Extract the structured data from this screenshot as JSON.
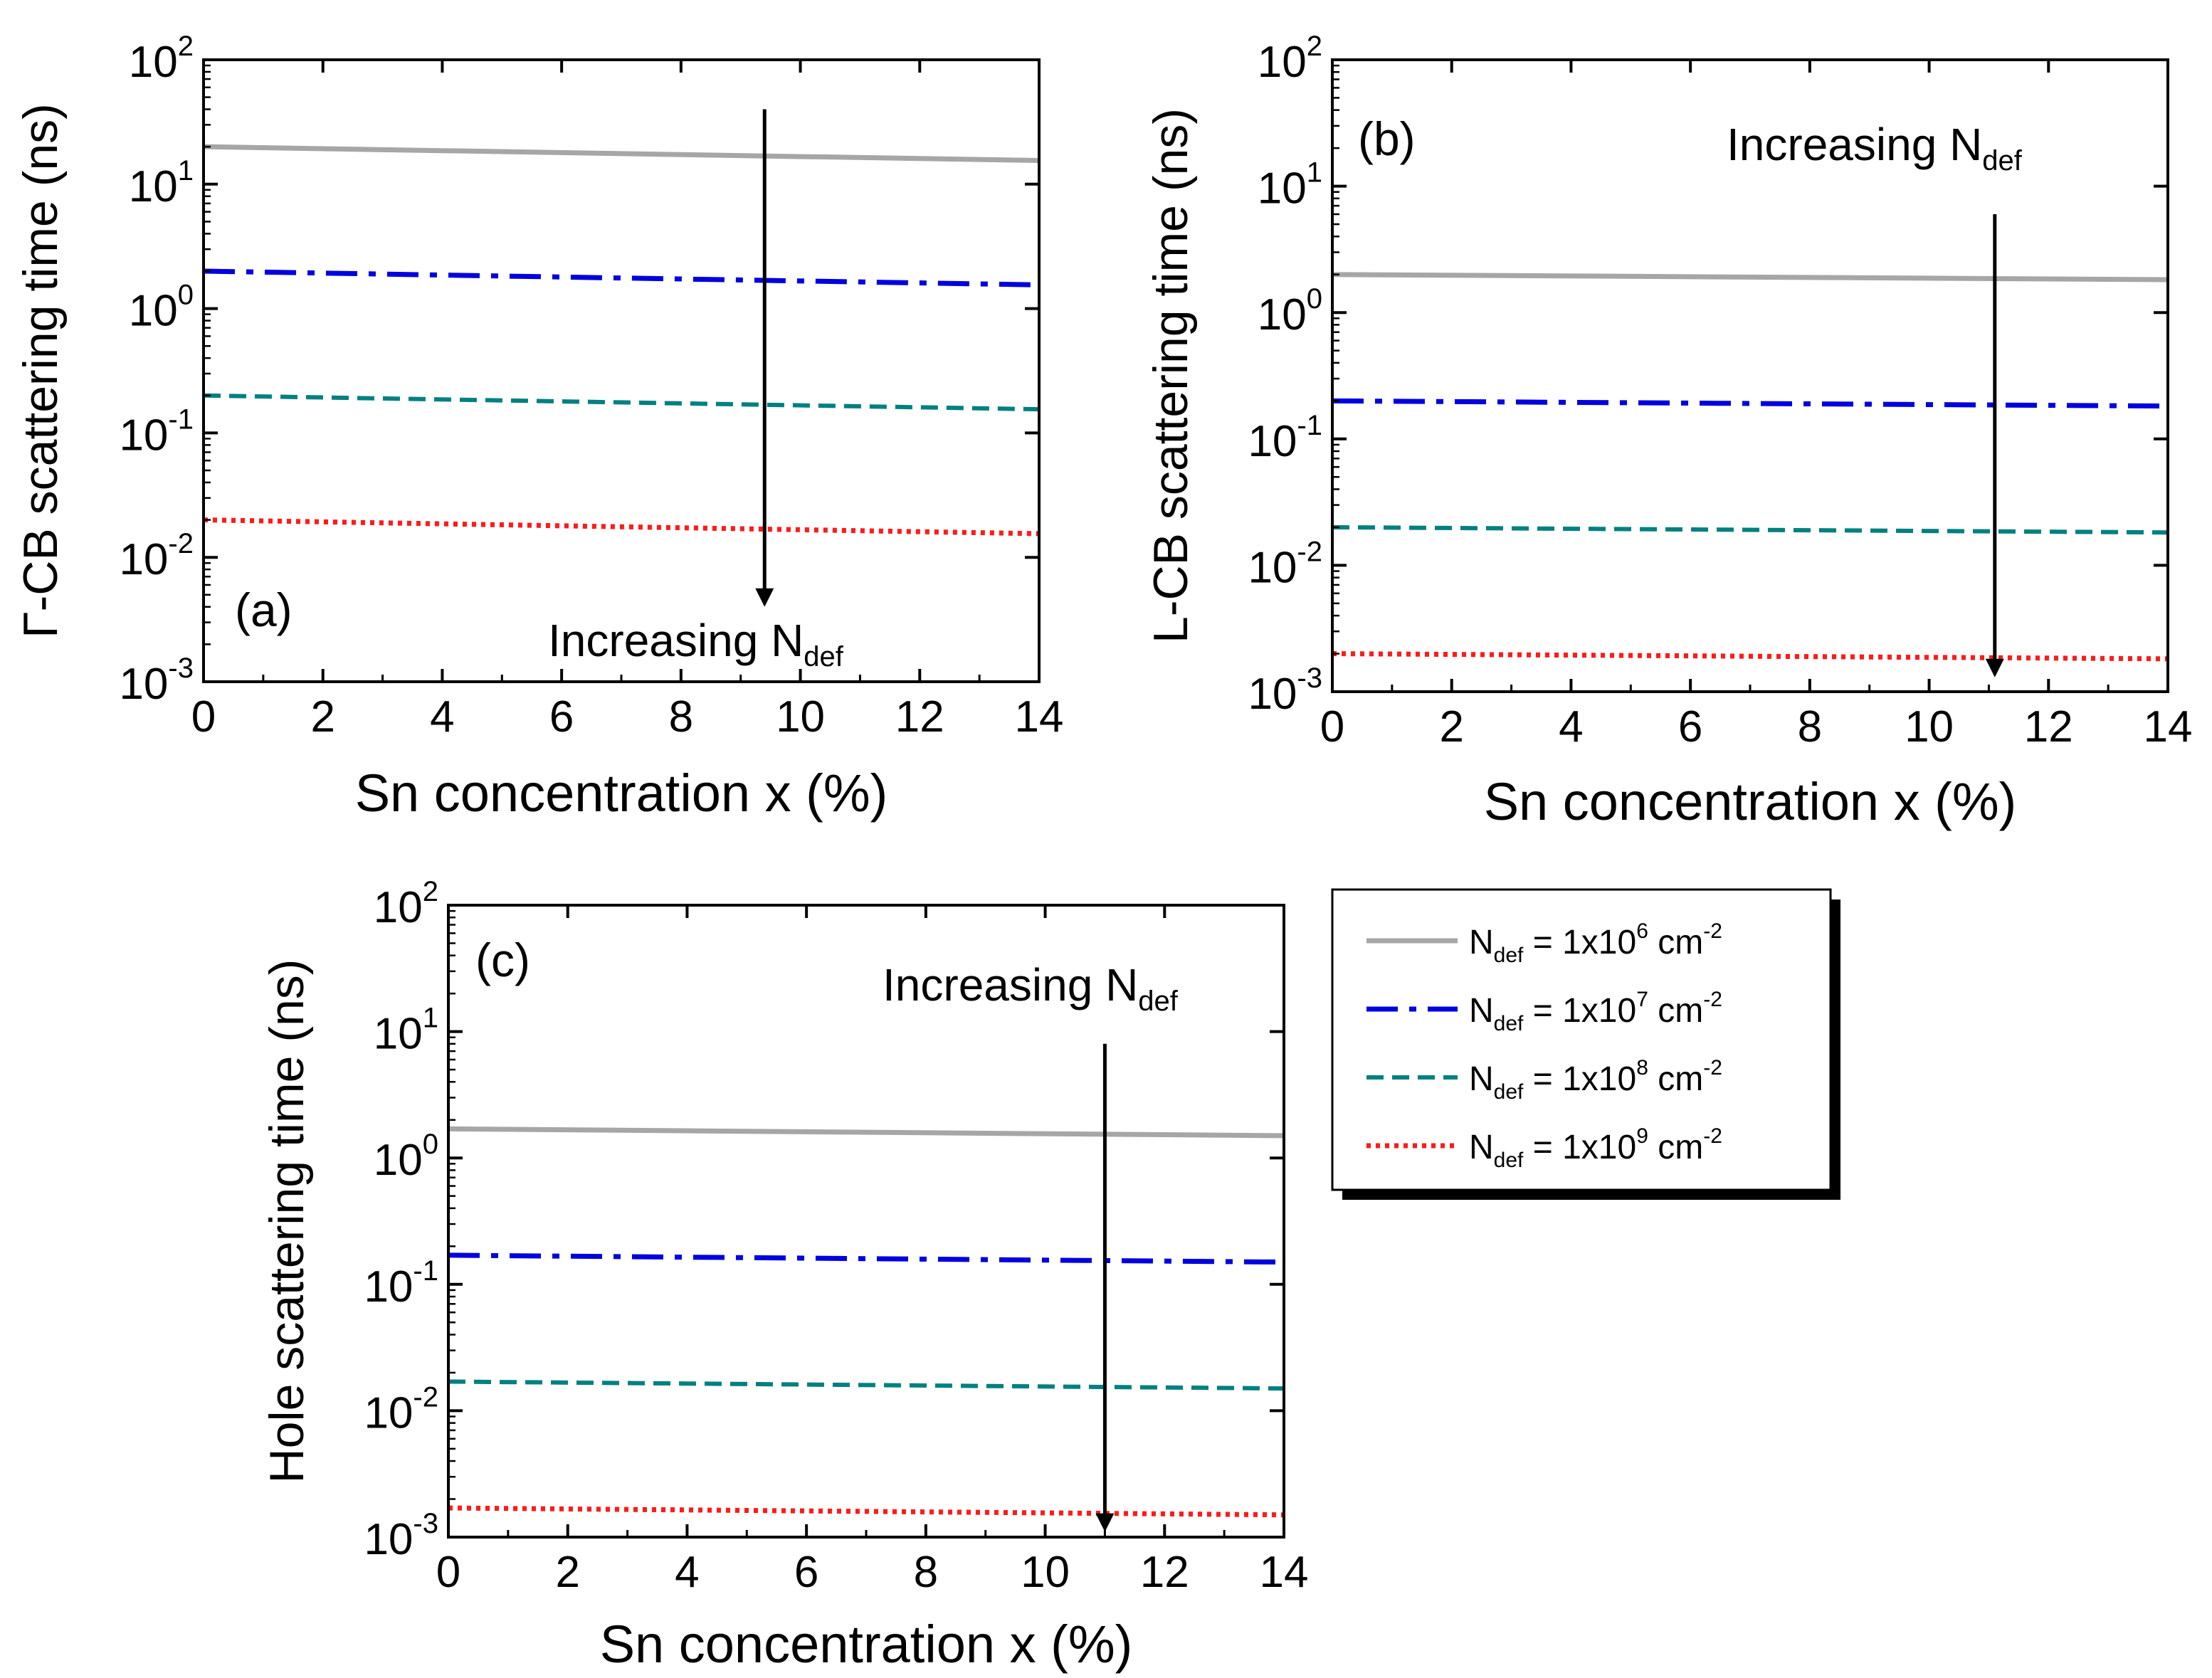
{
  "chart_data": [
    {
      "type": "line",
      "panel_label": "(a)",
      "xlabel": "Sn concentration x (%)",
      "ylabel": "Γ-CB scattering time (ns)",
      "xlim": [
        0,
        14
      ],
      "ylim": [
        0.001,
        100
      ],
      "yscale": "log",
      "xticks": [
        "0",
        "2",
        "4",
        "6",
        "8",
        "10",
        "12",
        "14"
      ],
      "yticks": [
        {
          "base": "10",
          "exp": "-3"
        },
        {
          "base": "10",
          "exp": "-2"
        },
        {
          "base": "10",
          "exp": "-1"
        },
        {
          "base": "10",
          "exp": "0"
        },
        {
          "base": "10",
          "exp": "1"
        },
        {
          "base": "10",
          "exp": "2"
        }
      ],
      "annotation": {
        "text": "Increasing N",
        "sub": "def",
        "arrow_x": 9.4,
        "arrow_from": 40,
        "arrow_to": 0.004
      },
      "series": [
        {
          "x": [
            0,
            14
          ],
          "y": [
            20,
            15.5
          ]
        },
        {
          "x": [
            0,
            14
          ],
          "y": [
            2.0,
            1.55
          ]
        },
        {
          "x": [
            0,
            14
          ],
          "y": [
            0.2,
            0.155
          ]
        },
        {
          "x": [
            0,
            14
          ],
          "y": [
            0.02,
            0.0155
          ]
        }
      ]
    },
    {
      "type": "line",
      "panel_label": "(b)",
      "xlabel": "Sn concentration x (%)",
      "ylabel": "L-CB scattering time (ns)",
      "xlim": [
        0,
        14
      ],
      "ylim": [
        0.001,
        100
      ],
      "yscale": "log",
      "xticks": [
        "0",
        "2",
        "4",
        "6",
        "8",
        "10",
        "12",
        "14"
      ],
      "yticks": [
        {
          "base": "10",
          "exp": "-3"
        },
        {
          "base": "10",
          "exp": "-2"
        },
        {
          "base": "10",
          "exp": "-1"
        },
        {
          "base": "10",
          "exp": "0"
        },
        {
          "base": "10",
          "exp": "1"
        },
        {
          "base": "10",
          "exp": "2"
        }
      ],
      "annotation": {
        "text": "Increasing N",
        "sub": "def",
        "arrow_x": 11.1,
        "arrow_from": 6,
        "arrow_to": 0.0013
      },
      "series": [
        {
          "x": [
            0,
            14
          ],
          "y": [
            2.0,
            1.82
          ]
        },
        {
          "x": [
            0,
            14
          ],
          "y": [
            0.2,
            0.182
          ]
        },
        {
          "x": [
            0,
            14
          ],
          "y": [
            0.02,
            0.0182
          ]
        },
        {
          "x": [
            0,
            14
          ],
          "y": [
            0.002,
            0.00182
          ]
        }
      ]
    },
    {
      "type": "line",
      "panel_label": "(c)",
      "xlabel": "Sn concentration x (%)",
      "ylabel": "Hole scattering time (ns)",
      "xlim": [
        0,
        14
      ],
      "ylim": [
        0.001,
        100
      ],
      "yscale": "log",
      "xticks": [
        "0",
        "2",
        "4",
        "6",
        "8",
        "10",
        "12",
        "14"
      ],
      "yticks": [
        {
          "base": "10",
          "exp": "-3"
        },
        {
          "base": "10",
          "exp": "-2"
        },
        {
          "base": "10",
          "exp": "-1"
        },
        {
          "base": "10",
          "exp": "0"
        },
        {
          "base": "10",
          "exp": "1"
        },
        {
          "base": "10",
          "exp": "2"
        }
      ],
      "annotation": {
        "text": "Increasing N",
        "sub": "def",
        "arrow_x": 11.0,
        "arrow_from": 8,
        "arrow_to": 0.0011
      },
      "series": [
        {
          "x": [
            0,
            14
          ],
          "y": [
            1.7,
            1.5
          ]
        },
        {
          "x": [
            0,
            14
          ],
          "y": [
            0.17,
            0.15
          ]
        },
        {
          "x": [
            0,
            14
          ],
          "y": [
            0.017,
            0.015
          ]
        },
        {
          "x": [
            0,
            14
          ],
          "y": [
            0.0017,
            0.0015
          ]
        }
      ]
    }
  ],
  "legend": {
    "placement": "right of panel (c)",
    "entries": [
      {
        "prefix": "N",
        "sub": "def",
        "mid": " = 1x10",
        "exp": "6",
        "unit": " cm",
        "unit_exp": "-2",
        "color": "#a6a6a6",
        "dash": "solid"
      },
      {
        "prefix": "N",
        "sub": "def",
        "mid": " = 1x10",
        "exp": "7",
        "unit": " cm",
        "unit_exp": "-2",
        "color": "#0000e0",
        "dash": "dashdot"
      },
      {
        "prefix": "N",
        "sub": "def",
        "mid": " = 1x10",
        "exp": "8",
        "unit": " cm",
        "unit_exp": "-2",
        "color": "#008080",
        "dash": "dashed"
      },
      {
        "prefix": "N",
        "sub": "def",
        "mid": " = 1x10",
        "exp": "9",
        "unit": " cm",
        "unit_exp": "-2",
        "color": "#ff1a1a",
        "dash": "dotted"
      }
    ]
  }
}
